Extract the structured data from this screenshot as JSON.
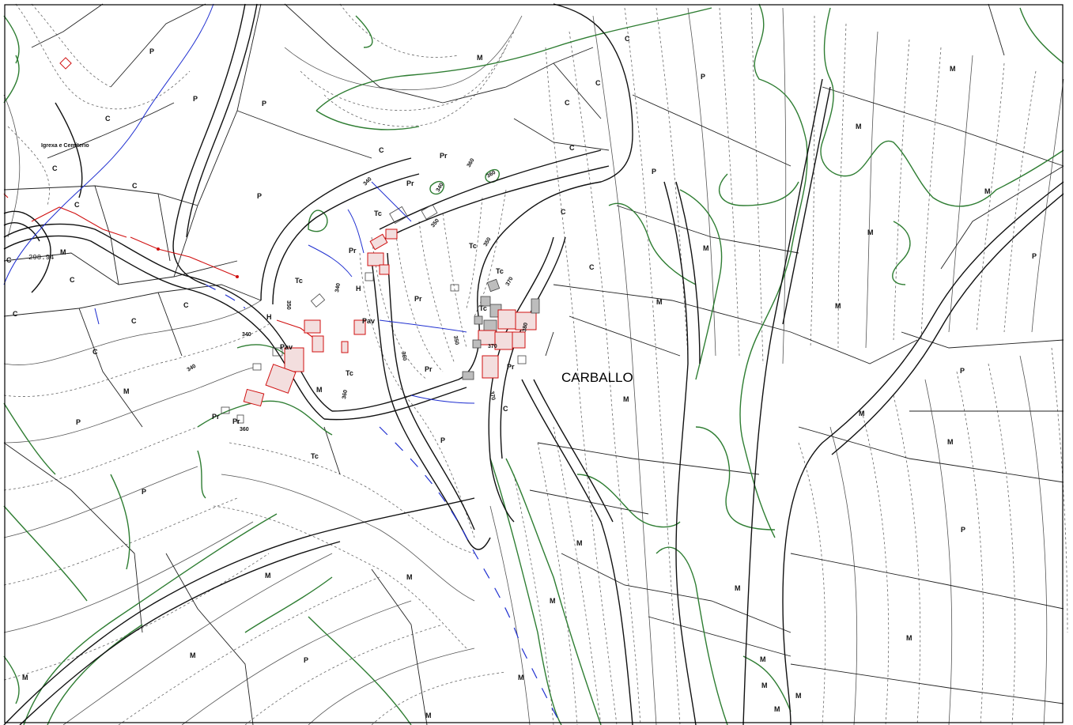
{
  "place_name": "CARBALLO",
  "church_label": "Igrexa e Cemiterio",
  "spot_height": "298.94",
  "contour_labels": [
    "340",
    "350",
    "360",
    "340",
    "350",
    "360",
    "350",
    "340",
    "340",
    "360",
    "370",
    "370",
    "370",
    "350",
    "340",
    "360",
    "380",
    "360"
  ],
  "land_use_labels": [
    {
      "code": "P"
    },
    {
      "code": "P"
    },
    {
      "code": "C"
    },
    {
      "code": "C"
    },
    {
      "code": "C"
    },
    {
      "code": "C"
    },
    {
      "code": "M"
    },
    {
      "code": "C"
    },
    {
      "code": "C"
    },
    {
      "code": "C"
    },
    {
      "code": "C"
    },
    {
      "code": "C"
    },
    {
      "code": "C"
    },
    {
      "code": "P"
    },
    {
      "code": "P"
    },
    {
      "code": "C"
    },
    {
      "code": "Pr"
    },
    {
      "code": "Tc"
    },
    {
      "code": "Pr"
    },
    {
      "code": "Tc"
    },
    {
      "code": "H"
    },
    {
      "code": "H"
    },
    {
      "code": "Pav"
    },
    {
      "code": "Pav"
    },
    {
      "code": "Tc"
    },
    {
      "code": "Pr"
    },
    {
      "code": "Pr"
    },
    {
      "code": "Pr"
    },
    {
      "code": "Pr"
    },
    {
      "code": "Pr"
    },
    {
      "code": "Tc"
    },
    {
      "code": "Tc"
    },
    {
      "code": "C"
    },
    {
      "code": "C"
    },
    {
      "code": "C"
    },
    {
      "code": "C"
    },
    {
      "code": "M"
    },
    {
      "code": "C"
    },
    {
      "code": "C"
    },
    {
      "code": "C"
    },
    {
      "code": "P"
    },
    {
      "code": "Pr"
    },
    {
      "code": "Tc"
    },
    {
      "code": "Tc"
    },
    {
      "code": "M"
    },
    {
      "code": "M"
    },
    {
      "code": "P"
    },
    {
      "code": "M"
    },
    {
      "code": "P"
    },
    {
      "code": "M"
    },
    {
      "code": "P"
    },
    {
      "code": "M"
    },
    {
      "code": "M"
    },
    {
      "code": "M"
    },
    {
      "code": "M"
    },
    {
      "code": "M"
    },
    {
      "code": "M"
    },
    {
      "code": "P"
    },
    {
      "code": "M"
    },
    {
      "code": "P"
    },
    {
      "code": "M"
    },
    {
      "code": "M"
    },
    {
      "code": "M"
    },
    {
      "code": "P"
    },
    {
      "code": "M"
    },
    {
      "code": "M"
    },
    {
      "code": "M"
    },
    {
      "code": "M"
    },
    {
      "code": "M"
    },
    {
      "code": "M"
    },
    {
      "code": "P"
    },
    {
      "code": "M"
    },
    {
      "code": "M"
    },
    {
      "code": "P"
    },
    {
      "code": "M"
    },
    {
      "code": "M"
    },
    {
      "code": "M"
    },
    {
      "code": "M"
    }
  ]
}
